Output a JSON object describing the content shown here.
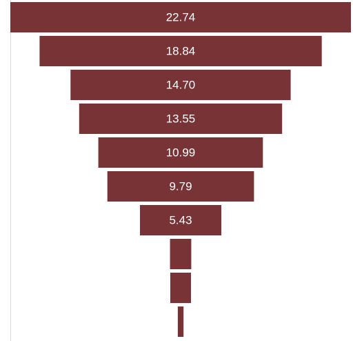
{
  "chart_data": {
    "type": "bar",
    "orientation": "funnel",
    "values": [
      22.74,
      18.84,
      14.7,
      13.55,
      10.99,
      9.79,
      5.43,
      1.42,
      1.38,
      0.38
    ],
    "labels": [
      "22.74",
      "18.84",
      "14.70",
      "13.55",
      "10.99",
      "9.79",
      "5.43",
      "",
      "",
      ""
    ],
    "bar_color": "#773336",
    "axis_color": "#d9d9d9",
    "title": "",
    "xlabel": "",
    "ylabel": "",
    "legend": "none",
    "grid": false
  }
}
